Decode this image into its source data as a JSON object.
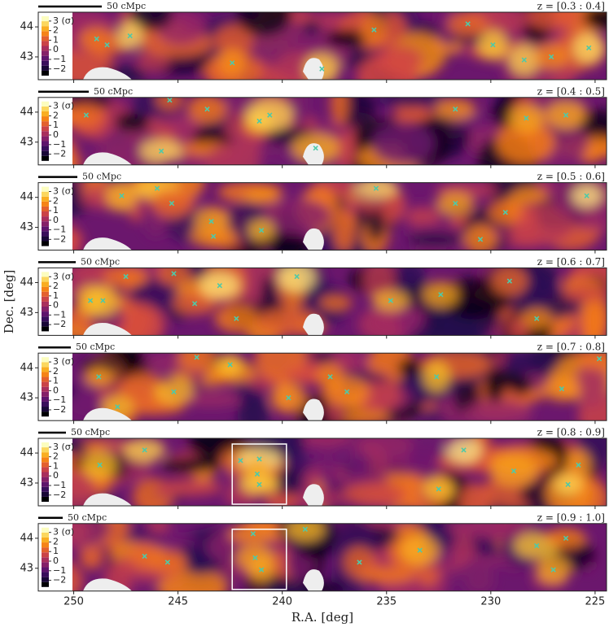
{
  "chart_data": [
    {
      "type": "density_map",
      "scale_bar": "50 cMpc",
      "label": "z = [0.3 : 0.4]",
      "xlim": [
        251.7,
        224.45
      ],
      "ylim": [
        42.24,
        44.49
      ],
      "yticks": [
        43,
        44
      ],
      "clim": [
        -2.7,
        3.5
      ],
      "cticks": [
        {
          "value": 3,
          "label": "3 (σ)"
        },
        2,
        1,
        0,
        {
          "value": -1,
          "label": "−1"
        },
        {
          "value": -2,
          "label": "−2"
        }
      ],
      "marker_color": "#4fc9a8",
      "x": [
        248.9,
        248.4,
        247.3,
        242.4,
        238.1,
        235.6,
        231.1,
        229.9,
        228.4,
        227.1,
        225.3
      ],
      "y": [
        43.6,
        43.4,
        43.7,
        42.8,
        42.6,
        43.9,
        44.1,
        43.4,
        42.9,
        43.0,
        43.3
      ]
    },
    {
      "type": "density_map",
      "scale_bar": "50 cMpc",
      "label": "z = [0.4 : 0.5]",
      "xlim": [
        251.7,
        224.45
      ],
      "ylim": [
        42.24,
        44.49
      ],
      "yticks": [
        43,
        44
      ],
      "clim": [
        -2.7,
        3.5
      ],
      "cticks": [
        {
          "value": 3,
          "label": "3 (σ)"
        },
        2,
        1,
        0,
        {
          "value": -1,
          "label": "−1"
        },
        {
          "value": -2,
          "label": "−2"
        }
      ],
      "marker_color": "#4fc9a8",
      "x": [
        249.4,
        245.4,
        243.6,
        241.1,
        240.6,
        238.4,
        231.7,
        228.3,
        226.4,
        245.8
      ],
      "y": [
        43.9,
        44.4,
        44.1,
        43.7,
        43.9,
        42.8,
        44.1,
        43.8,
        43.9,
        42.7
      ]
    },
    {
      "type": "density_map",
      "scale_bar": "50 cMpc",
      "label": "z = [0.5 : 0.6]",
      "xlim": [
        251.7,
        224.45
      ],
      "ylim": [
        42.24,
        44.49
      ],
      "yticks": [
        43,
        44
      ],
      "clim": [
        -2.7,
        3.5
      ],
      "cticks": [
        {
          "value": 3,
          "label": "3 (σ)"
        },
        2,
        1,
        0,
        {
          "value": -1,
          "label": "−1"
        },
        {
          "value": -2,
          "label": "−2"
        }
      ],
      "marker_color": "#4fc9a8",
      "x": [
        247.7,
        246.0,
        245.3,
        243.4,
        243.3,
        241.0,
        235.5,
        231.7,
        230.5,
        229.3,
        225.4
      ],
      "y": [
        44.05,
        44.3,
        43.8,
        43.2,
        42.7,
        42.9,
        44.3,
        43.8,
        42.6,
        43.5,
        44.05
      ]
    },
    {
      "type": "density_map",
      "scale_bar": "50 cMpc",
      "label": "z = [0.6 : 0.7]",
      "xlim": [
        251.7,
        224.45
      ],
      "ylim": [
        42.24,
        44.49
      ],
      "yticks": [
        43,
        44
      ],
      "clim": [
        -2.7,
        3.5
      ],
      "cticks": [
        {
          "value": 3,
          "label": "3 (σ)"
        },
        2,
        1,
        0,
        {
          "value": -1,
          "label": "−1"
        },
        {
          "value": -2,
          "label": "−2"
        }
      ],
      "marker_color": "#4fc9a8",
      "ylabel": "Dec. [deg]",
      "x": [
        249.2,
        248.6,
        247.5,
        245.2,
        244.2,
        243.0,
        242.2,
        239.3,
        234.8,
        232.4,
        229.1,
        227.8
      ],
      "y": [
        43.4,
        43.4,
        44.2,
        44.3,
        43.3,
        43.9,
        42.8,
        44.2,
        43.4,
        43.6,
        44.05,
        42.8
      ]
    },
    {
      "type": "density_map",
      "scale_bar": "50 cMpc",
      "label": "z = [0.7 : 0.8]",
      "xlim": [
        251.7,
        224.45
      ],
      "ylim": [
        42.24,
        44.49
      ],
      "yticks": [
        43,
        44
      ],
      "clim": [
        -2.7,
        3.5
      ],
      "cticks": [
        {
          "value": 3,
          "label": "3 (σ)"
        },
        2,
        1,
        0,
        {
          "value": -1,
          "label": "−1"
        },
        {
          "value": -2,
          "label": "−2"
        }
      ],
      "marker_color": "#4fc9a8",
      "x": [
        248.8,
        247.9,
        245.2,
        244.1,
        242.5,
        239.7,
        237.7,
        236.9,
        232.6,
        226.6,
        224.8
      ],
      "y": [
        43.7,
        42.7,
        43.2,
        44.35,
        44.1,
        43.0,
        43.7,
        43.2,
        43.7,
        43.3,
        44.3
      ]
    },
    {
      "type": "density_map",
      "scale_bar": "50 cMpc",
      "label": "z = [0.8 : 0.9]",
      "xlim": [
        251.7,
        224.45
      ],
      "ylim": [
        42.24,
        44.49
      ],
      "yticks": [
        43,
        44
      ],
      "clim": [
        -2.7,
        3.5
      ],
      "cticks": [
        {
          "value": 3,
          "label": "3 (σ)"
        },
        2,
        1,
        0,
        {
          "value": -1,
          "label": "−1"
        },
        {
          "value": -2,
          "label": "−2"
        }
      ],
      "marker_color": "#4fc9a8",
      "box_xlim": [
        242.4,
        239.8
      ],
      "x": [
        248.75,
        246.6,
        242.0,
        241.1,
        241.2,
        241.1,
        231.3,
        228.9,
        225.8,
        226.3,
        232.5
      ],
      "y": [
        43.6,
        44.1,
        43.75,
        43.8,
        43.3,
        42.95,
        44.1,
        43.4,
        43.6,
        42.95,
        42.8
      ]
    },
    {
      "type": "density_map",
      "scale_bar": "50 cMpc",
      "label": "z = [0.9 : 1.0]",
      "xlim": [
        251.7,
        224.45
      ],
      "ylim": [
        42.24,
        44.49
      ],
      "yticks": [
        43,
        44
      ],
      "clim": [
        -2.7,
        3.5
      ],
      "cticks": [
        {
          "value": 3,
          "label": "3 (σ)"
        },
        2,
        1,
        0,
        {
          "value": -1,
          "label": "−1"
        },
        {
          "value": -2,
          "label": "−2"
        }
      ],
      "marker_color": "#4fc9a8",
      "box_xlim": [
        242.4,
        239.8
      ],
      "xticks": [
        250,
        245,
        240,
        235,
        230,
        225
      ],
      "xlabel": "R.A. [deg]",
      "x": [
        246.6,
        245.5,
        241.4,
        241.3,
        241.0,
        238.9,
        236.3,
        233.4,
        227.8,
        226.4,
        227.0
      ],
      "y": [
        43.4,
        43.2,
        44.15,
        43.35,
        42.95,
        44.3,
        43.2,
        43.6,
        43.75,
        44.0,
        42.95
      ]
    }
  ]
}
